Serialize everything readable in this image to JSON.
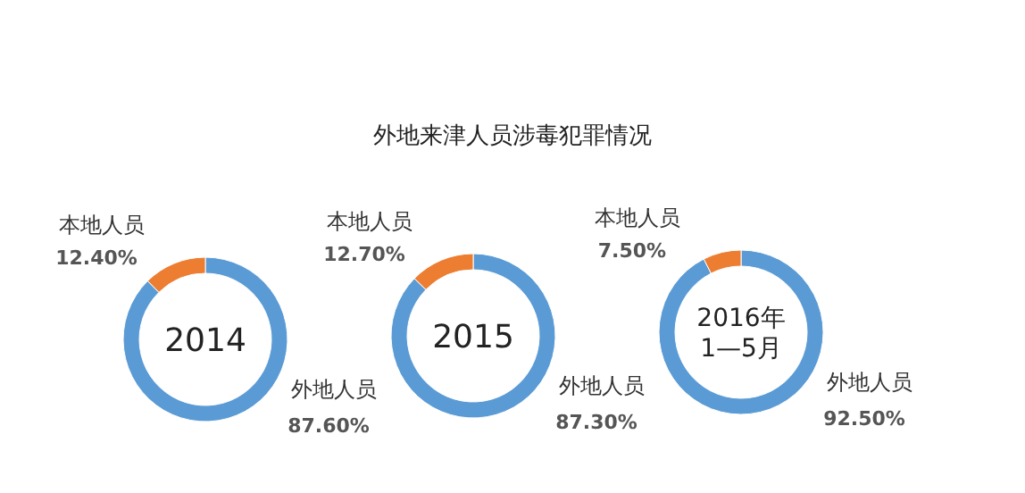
{
  "chart_data": [
    {
      "type": "other",
      "title": "外地来津人员涉毒犯罪情况"
    },
    {
      "type": "donut",
      "categories": [
        "外地人员",
        "本地人员"
      ],
      "values": [
        87.6,
        12.4
      ],
      "value_labels": [
        "87.60%",
        "12.40%"
      ],
      "colors": [
        "#5b9bd5",
        "#ed7d31"
      ],
      "annotations": [
        "2014"
      ]
    },
    {
      "type": "donut",
      "categories": [
        "外地人员",
        "本地人员"
      ],
      "values": [
        87.3,
        12.7
      ],
      "value_labels": [
        "87.30%",
        "12.70%"
      ],
      "colors": [
        "#5b9bd5",
        "#ed7d31"
      ],
      "annotations": [
        "2015"
      ]
    },
    {
      "type": "donut",
      "categories": [
        "外地人员",
        "本地人员"
      ],
      "values": [
        92.5,
        7.5
      ],
      "value_labels": [
        "92.50%",
        "7.50%"
      ],
      "colors": [
        "#5b9bd5",
        "#ed7d31"
      ],
      "annotations": [
        "2016年",
        "1—5月"
      ]
    }
  ]
}
